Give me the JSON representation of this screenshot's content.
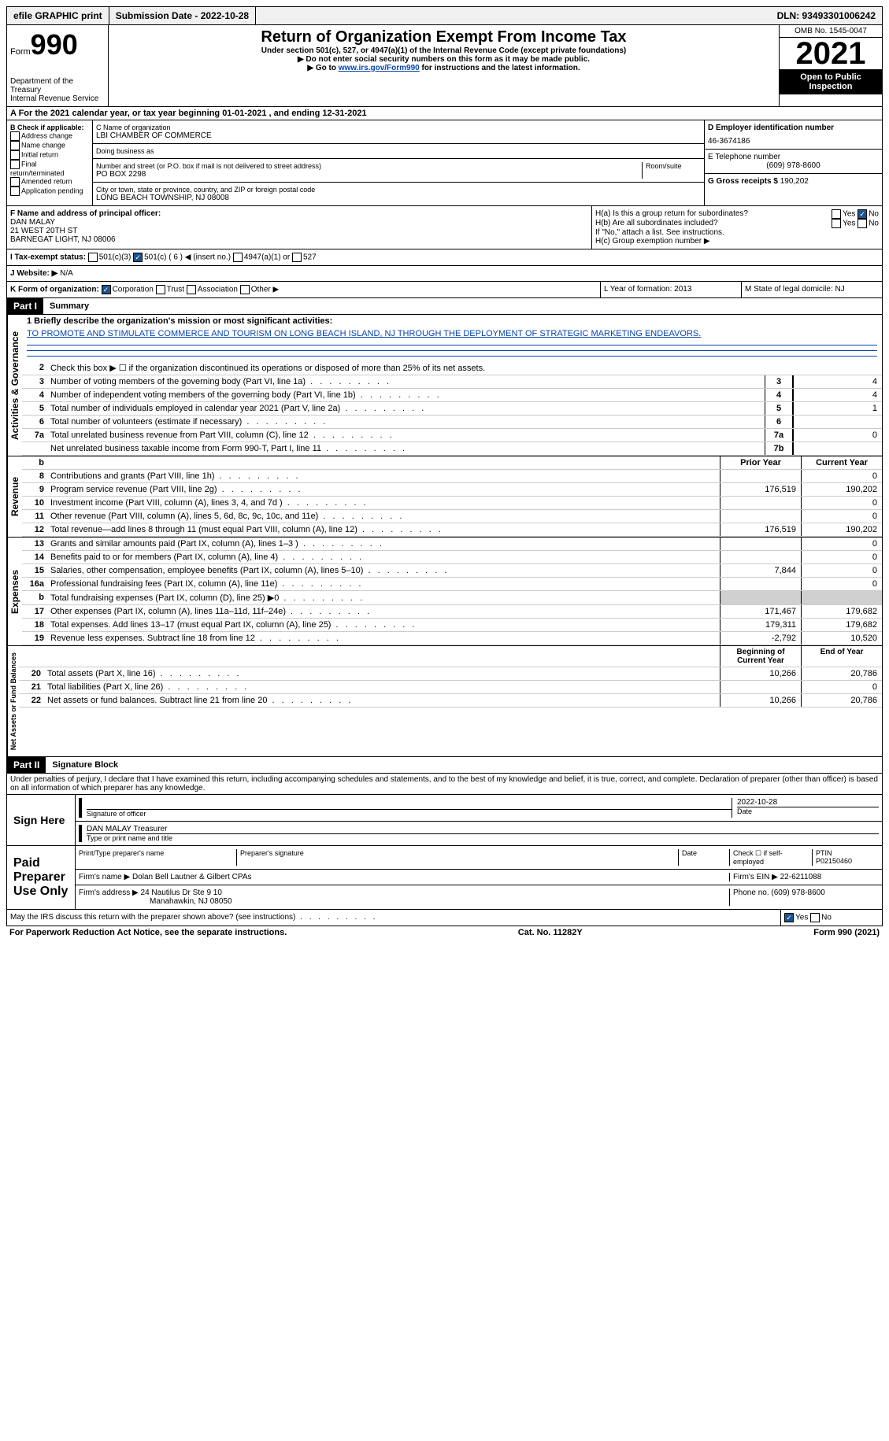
{
  "topbar": {
    "efile": "efile GRAPHIC print",
    "submission": "Submission Date - 2022-10-28",
    "dln": "DLN: 93493301006242"
  },
  "header": {
    "form_prefix": "Form",
    "form_number": "990",
    "dept": "Department of the Treasury",
    "irs": "Internal Revenue Service",
    "title": "Return of Organization Exempt From Income Tax",
    "subtitle1": "Under section 501(c), 527, or 4947(a)(1) of the Internal Revenue Code (except private foundations)",
    "subtitle2": "▶ Do not enter social security numbers on this form as it may be made public.",
    "subtitle3_pre": "▶ Go to ",
    "subtitle3_link": "www.irs.gov/Form990",
    "subtitle3_post": " for instructions and the latest information.",
    "omb": "OMB No. 1545-0047",
    "year": "2021",
    "open": "Open to Public Inspection"
  },
  "rowA": "A For the 2021 calendar year, or tax year beginning 01-01-2021    , and ending 12-31-2021",
  "boxB": {
    "label": "B Check if applicable:",
    "opts": [
      "Address change",
      "Name change",
      "Initial return",
      "Final return/terminated",
      "Amended return",
      "Application pending"
    ]
  },
  "boxC": {
    "label_name": "C Name of organization",
    "name": "LBI CHAMBER OF COMMERCE",
    "dba_label": "Doing business as",
    "addr_label": "Number and street (or P.O. box if mail is not delivered to street address)",
    "room_label": "Room/suite",
    "addr": "PO BOX 2298",
    "city_label": "City or town, state or province, country, and ZIP or foreign postal code",
    "city": "LONG BEACH TOWNSHIP, NJ  08008"
  },
  "boxD": {
    "label": "D Employer identification number",
    "val": "46-3674186"
  },
  "boxE": {
    "label": "E Telephone number",
    "val": "(609) 978-8600"
  },
  "boxG": {
    "label": "G Gross receipts $",
    "val": "190,202"
  },
  "boxF": {
    "label": "F  Name and address of principal officer:",
    "name": "DAN MALAY",
    "addr1": "21 WEST 20TH ST",
    "addr2": "BARNEGAT LIGHT, NJ  08006"
  },
  "boxH": {
    "a_label": "H(a)  Is this a group return for subordinates?",
    "b_label": "H(b)  Are all subordinates included?",
    "note": "If \"No,\" attach a list. See instructions.",
    "c_label": "H(c)  Group exemption number ▶",
    "yes": "Yes",
    "no": "No"
  },
  "rowI": {
    "label": "I   Tax-exempt status:",
    "opt1": "501(c)(3)",
    "opt2": "501(c) ( 6 ) ◀ (insert no.)",
    "opt3": "4947(a)(1) or",
    "opt4": "527"
  },
  "rowJ": {
    "label": "J   Website: ▶",
    "val": "N/A"
  },
  "rowK": {
    "label": "K Form of organization:",
    "opts": [
      "Corporation",
      "Trust",
      "Association",
      "Other ▶"
    ],
    "L": "L Year of formation: 2013",
    "M": "M State of legal domicile: NJ"
  },
  "part1": {
    "header": "Part I",
    "title": "Summary",
    "section1_label": "Activities & Governance",
    "line1_label": "1   Briefly describe the organization's mission or most significant activities:",
    "mission": "TO PROMOTE AND STIMULATE COMMERCE AND TOURISM ON LONG BEACH ISLAND, NJ THROUGH THE DEPLOYMENT OF STRATEGIC MARKETING ENDEAVORS.",
    "line2": "Check this box ▶ ☐  if the organization discontinued its operations or disposed of more than 25% of its net assets.",
    "rows_ag": [
      {
        "n": "3",
        "t": "Number of voting members of the governing body (Part VI, line 1a)",
        "box": "3",
        "v": "4"
      },
      {
        "n": "4",
        "t": "Number of independent voting members of the governing body (Part VI, line 1b)",
        "box": "4",
        "v": "4"
      },
      {
        "n": "5",
        "t": "Total number of individuals employed in calendar year 2021 (Part V, line 2a)",
        "box": "5",
        "v": "1"
      },
      {
        "n": "6",
        "t": "Total number of volunteers (estimate if necessary)",
        "box": "6",
        "v": ""
      },
      {
        "n": "7a",
        "t": "Total unrelated business revenue from Part VIII, column (C), line 12",
        "box": "7a",
        "v": "0"
      },
      {
        "n": "",
        "t": "Net unrelated business taxable income from Form 990-T, Part I, line 11",
        "box": "7b",
        "v": ""
      }
    ],
    "col_prior": "Prior Year",
    "col_current": "Current Year",
    "section2_label": "Revenue",
    "rows_rev": [
      {
        "n": "8",
        "t": "Contributions and grants (Part VIII, line 1h)",
        "p": "",
        "c": "0"
      },
      {
        "n": "9",
        "t": "Program service revenue (Part VIII, line 2g)",
        "p": "176,519",
        "c": "190,202"
      },
      {
        "n": "10",
        "t": "Investment income (Part VIII, column (A), lines 3, 4, and 7d )",
        "p": "",
        "c": "0"
      },
      {
        "n": "11",
        "t": "Other revenue (Part VIII, column (A), lines 5, 6d, 8c, 9c, 10c, and 11e)",
        "p": "",
        "c": "0"
      },
      {
        "n": "12",
        "t": "Total revenue—add lines 8 through 11 (must equal Part VIII, column (A), line 12)",
        "p": "176,519",
        "c": "190,202"
      }
    ],
    "section3_label": "Expenses",
    "rows_exp": [
      {
        "n": "13",
        "t": "Grants and similar amounts paid (Part IX, column (A), lines 1–3 )",
        "p": "",
        "c": "0"
      },
      {
        "n": "14",
        "t": "Benefits paid to or for members (Part IX, column (A), line 4)",
        "p": "",
        "c": "0"
      },
      {
        "n": "15",
        "t": "Salaries, other compensation, employee benefits (Part IX, column (A), lines 5–10)",
        "p": "7,844",
        "c": "0"
      },
      {
        "n": "16a",
        "t": "Professional fundraising fees (Part IX, column (A), line 11e)",
        "p": "",
        "c": "0"
      },
      {
        "n": "b",
        "t": "Total fundraising expenses (Part IX, column (D), line 25) ▶0",
        "p": "SHADED",
        "c": "SHADED"
      },
      {
        "n": "17",
        "t": "Other expenses (Part IX, column (A), lines 11a–11d, 11f–24e)",
        "p": "171,467",
        "c": "179,682"
      },
      {
        "n": "18",
        "t": "Total expenses. Add lines 13–17 (must equal Part IX, column (A), line 25)",
        "p": "179,311",
        "c": "179,682"
      },
      {
        "n": "19",
        "t": "Revenue less expenses. Subtract line 18 from line 12",
        "p": "-2,792",
        "c": "10,520"
      }
    ],
    "section4_label": "Net Assets or Fund Balances",
    "col_beg": "Beginning of Current Year",
    "col_end": "End of Year",
    "rows_net": [
      {
        "n": "20",
        "t": "Total assets (Part X, line 16)",
        "p": "10,266",
        "c": "20,786"
      },
      {
        "n": "21",
        "t": "Total liabilities (Part X, line 26)",
        "p": "",
        "c": "0"
      },
      {
        "n": "22",
        "t": "Net assets or fund balances. Subtract line 21 from line 20",
        "p": "10,266",
        "c": "20,786"
      }
    ]
  },
  "part2": {
    "header": "Part II",
    "title": "Signature Block",
    "penalties": "Under penalties of perjury, I declare that I have examined this return, including accompanying schedules and statements, and to the best of my knowledge and belief, it is true, correct, and complete. Declaration of preparer (other than officer) is based on all information of which preparer has any knowledge.",
    "sign_here": "Sign Here",
    "sig_officer": "Signature of officer",
    "sig_date": "2022-10-28",
    "date_label": "Date",
    "sig_name": "DAN MALAY Treasurer",
    "sig_name_label": "Type or print name and title",
    "paid": "Paid Preparer Use Only",
    "prep_name_label": "Print/Type preparer's name",
    "prep_sig_label": "Preparer's signature",
    "check_if": "Check ☐ if self-employed",
    "ptin_label": "PTIN",
    "ptin": "P02150460",
    "firm_name_label": "Firm's name    ▶",
    "firm_name": "Dolan Bell Lautner & Gilbert CPAs",
    "firm_ein_label": "Firm's EIN ▶",
    "firm_ein": "22-6211088",
    "firm_addr_label": "Firm's address ▶",
    "firm_addr1": "24 Nautilus Dr Ste 9 10",
    "firm_addr2": "Manahawkin, NJ  08050",
    "phone_label": "Phone no.",
    "phone": "(609) 978-8600",
    "discuss": "May the IRS discuss this return with the preparer shown above? (see instructions)",
    "yes": "Yes",
    "no": "No"
  },
  "footer": {
    "left": "For Paperwork Reduction Act Notice, see the separate instructions.",
    "mid": "Cat. No. 11282Y",
    "right": "Form 990 (2021)"
  }
}
